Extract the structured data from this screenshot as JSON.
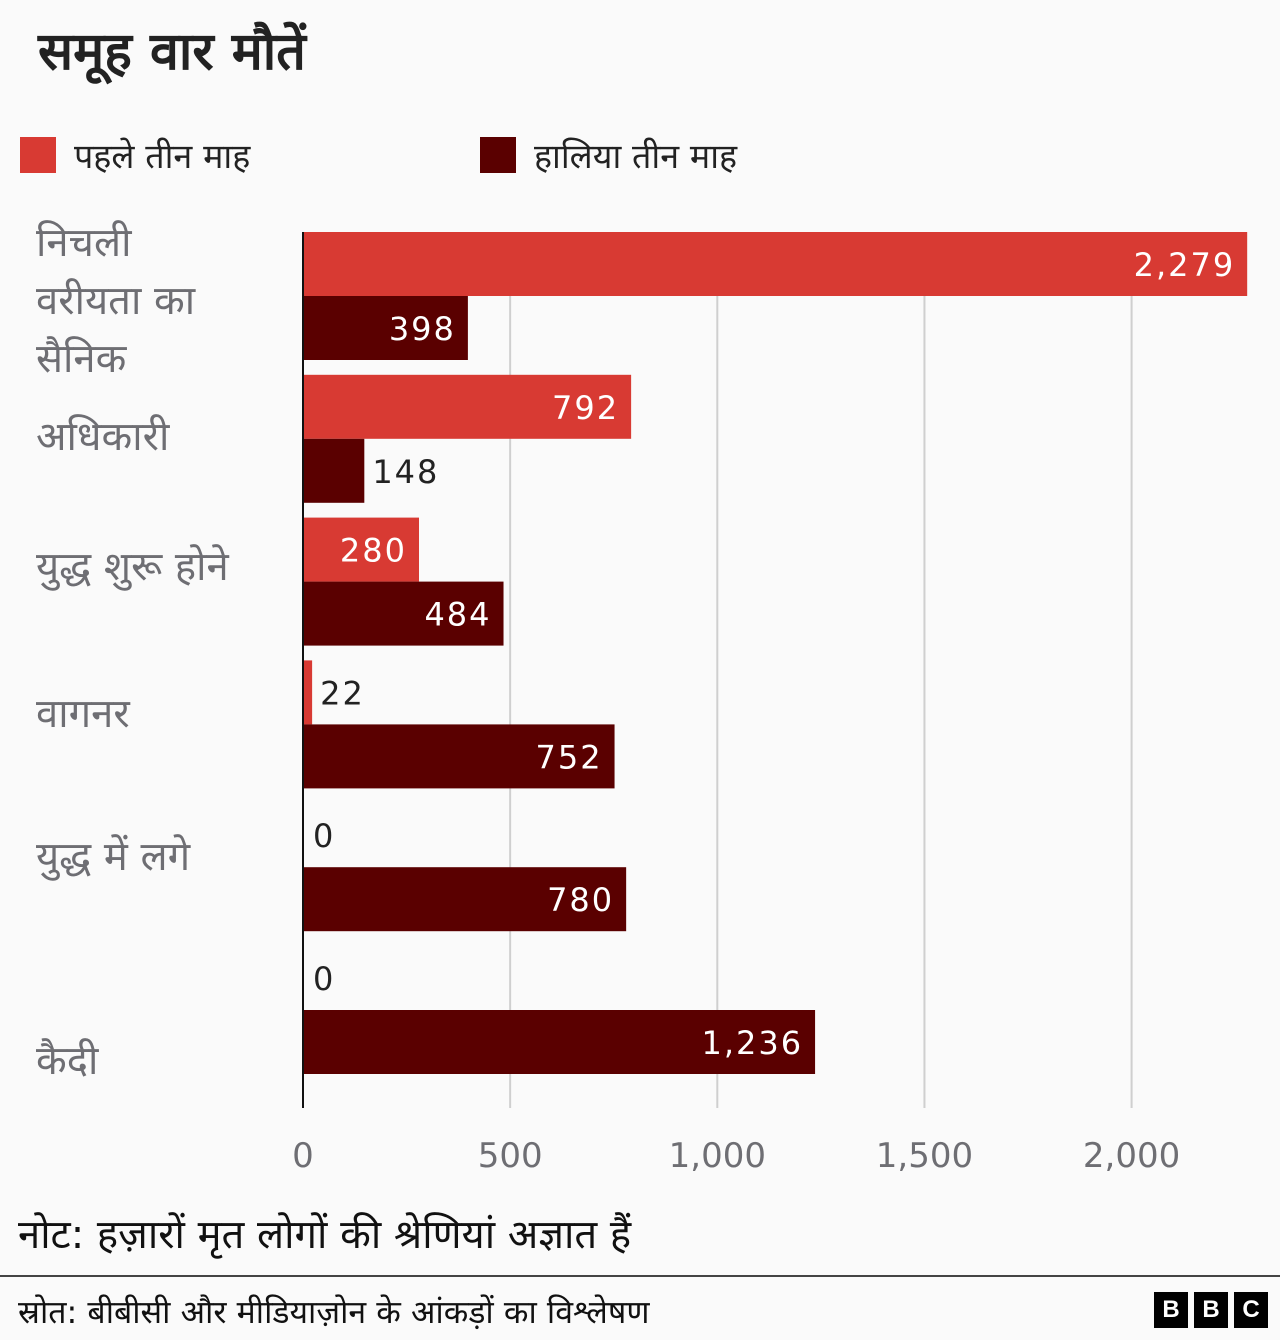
{
  "chart_data": {
    "type": "bar",
    "orientation": "horizontal",
    "title": "समूह वार मौतें",
    "categories": [
      "निचली वरीयता का सैनिक",
      "अधिकारी",
      "युद्ध शुरू होने",
      "वागनर",
      "युद्ध में लगे",
      "कैदी"
    ],
    "series": [
      {
        "name": "पहले तीन माह",
        "color": "#d83a33",
        "values": [
          2279,
          792,
          280,
          22,
          0,
          0
        ],
        "labels": [
          "2,279",
          "792",
          "280",
          "22",
          "0",
          "0"
        ]
      },
      {
        "name": "हालिया तीन माह",
        "color": "#5a0000",
        "values": [
          398,
          148,
          484,
          752,
          780,
          1236
        ],
        "labels": [
          "398",
          "148",
          "484",
          "752",
          "780",
          "1,236"
        ]
      }
    ],
    "xlim": [
      0,
      2279
    ],
    "xticks": [
      0,
      500,
      1000,
      1500,
      2000
    ],
    "xtick_labels": [
      "0",
      "500",
      "1,000",
      "1,500",
      "2,000"
    ],
    "grid": true,
    "legend": "top"
  },
  "category_lines": [
    [
      "निचली",
      "वरीयता का",
      "सैनिक"
    ],
    [
      "अधिकारी"
    ],
    [
      "युद्ध शुरू होने"
    ],
    [
      "वागनर"
    ],
    [
      "युद्ध में लगे"
    ],
    [
      "कैदी"
    ]
  ],
  "note": "नोट: हज़ारों मृत लोगों की श्रेणियां अज्ञात हैं",
  "source": "स्रोत: बीबीसी और मीडियाज़ोन के आंकड़ों का विश्लेषण",
  "logo": [
    "B",
    "B",
    "C"
  ]
}
